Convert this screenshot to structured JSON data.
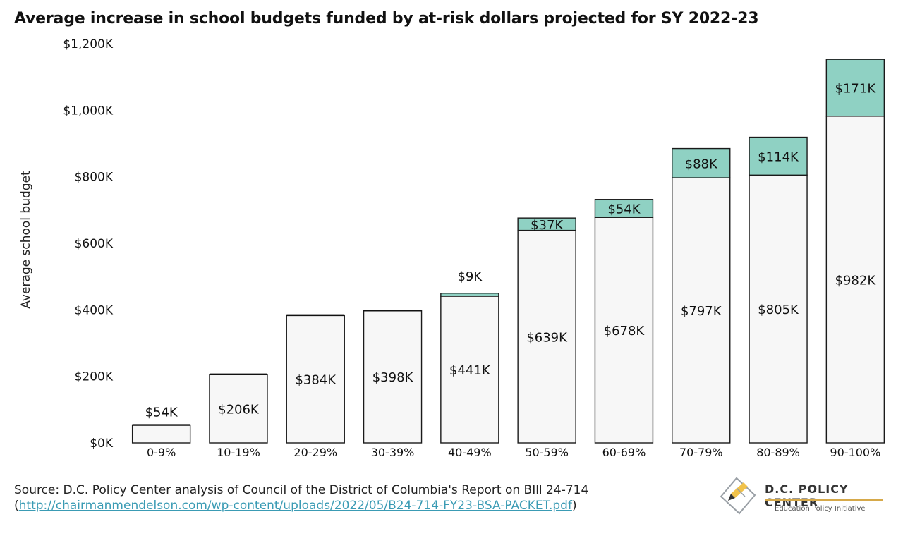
{
  "chart_data": {
    "type": "bar",
    "stacked": true,
    "title": "Average increase in school budgets funded by at-risk dollars projected for SY 2022-23",
    "xlabel": "",
    "ylabel": "Average school budget",
    "ylim": [
      0,
      1200
    ],
    "yticks": [
      0,
      200,
      400,
      600,
      800,
      1000,
      1200
    ],
    "ytick_labels": [
      "$0K",
      "$200K",
      "$400K",
      "$600K",
      "$800K",
      "$1,000K",
      "$1,200K"
    ],
    "categories": [
      "0-9%",
      "10-19%",
      "20-29%",
      "30-39%",
      "40-49%",
      "50-59%",
      "60-69%",
      "70-79%",
      "80-89%",
      "90-100%"
    ],
    "series": [
      {
        "values": [
          54,
          206,
          384,
          398,
          441,
          639,
          678,
          797,
          805,
          982
        ],
        "labels": [
          "$54K",
          "$206K",
          "$384K",
          "$398K",
          "$441K",
          "$639K",
          "$678K",
          "$797K",
          "$805K",
          "$982K"
        ],
        "color": "#f7f7f7"
      },
      {
        "values": [
          0,
          0,
          0,
          0,
          9,
          37,
          54,
          88,
          114,
          171
        ],
        "labels": [
          "",
          "",
          "",
          "",
          "$9K",
          "$37K",
          "$54K",
          "$88K",
          "$114K",
          "$171K"
        ],
        "color": "#8fd1c3"
      }
    ],
    "grid": false,
    "legend": "none"
  },
  "source": {
    "line1": "Source: D.C. Policy Center analysis of Council of the District of Columbia's Report on BIll 24-714",
    "paren_open": "(",
    "url": "http://chairmanmendelson.com/wp-content/uploads/2022/05/B24-714-FY23-BSA-PACKET.pdf",
    "paren_close": ")"
  },
  "logo": {
    "name": "D.C. POLICY CENTER",
    "subtitle": "Education Policy Initiative",
    "icon": "dc-map-pen-icon"
  }
}
